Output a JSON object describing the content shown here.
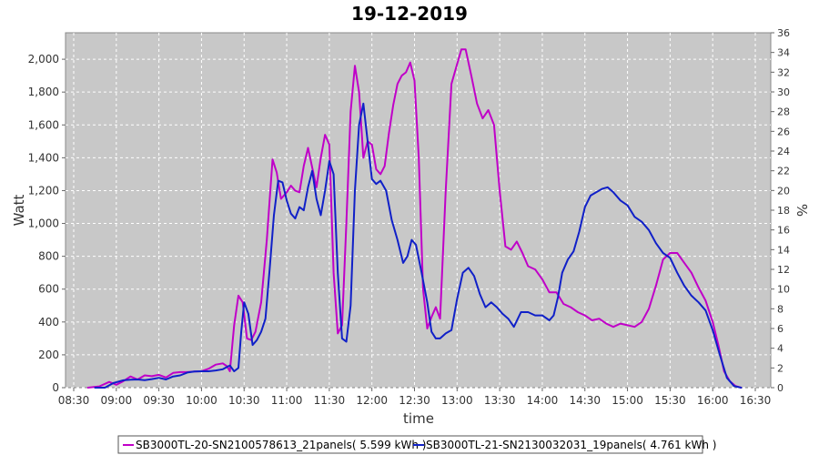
{
  "chart_data": {
    "type": "line",
    "title": "19-12-2019",
    "xlabel": "time",
    "ylabel": "Watt",
    "y2label": "%",
    "xlim": [
      "08:30",
      "16:30"
    ],
    "ylim": [
      0,
      2200
    ],
    "y2lim": [
      0,
      36
    ],
    "x_ticks": [
      "08:30",
      "09:00",
      "09:30",
      "10:00",
      "10:30",
      "11:00",
      "11:30",
      "12:00",
      "12:30",
      "13:00",
      "13:30",
      "14:00",
      "14:30",
      "15:00",
      "15:30",
      "16:00",
      "16:30"
    ],
    "y_ticks": [
      "0",
      "200",
      "400",
      "600",
      "800",
      "1,000",
      "1,200",
      "1,400",
      "1,600",
      "1,800",
      "2,000"
    ],
    "y_tick_values": [
      0,
      200,
      400,
      600,
      800,
      1000,
      1200,
      1400,
      1600,
      1800,
      2000
    ],
    "y2_ticks": [
      0,
      2,
      4,
      6,
      8,
      10,
      12,
      14,
      16,
      18,
      20,
      22,
      24,
      26,
      28,
      30,
      32,
      34,
      36
    ],
    "grid": true,
    "legend_position": "bottom",
    "background": "#c8c8c8",
    "series": [
      {
        "name": "SB3000TL-20-SN2100578613_21panels( 5.599 kWh )",
        "color": "#c000c8",
        "points": [
          [
            "08:40",
            0
          ],
          [
            "08:48",
            8
          ],
          [
            "08:55",
            35
          ],
          [
            "09:00",
            18
          ],
          [
            "09:05",
            40
          ],
          [
            "09:10",
            68
          ],
          [
            "09:15",
            50
          ],
          [
            "09:20",
            75
          ],
          [
            "09:25",
            70
          ],
          [
            "09:30",
            78
          ],
          [
            "09:35",
            62
          ],
          [
            "09:40",
            90
          ],
          [
            "09:45",
            95
          ],
          [
            "09:50",
            95
          ],
          [
            "09:55",
            98
          ],
          [
            "10:00",
            100
          ],
          [
            "10:05",
            115
          ],
          [
            "10:10",
            140
          ],
          [
            "10:15",
            148
          ],
          [
            "10:18",
            130
          ],
          [
            "10:20",
            100
          ],
          [
            "10:23",
            380
          ],
          [
            "10:26",
            560
          ],
          [
            "10:29",
            520
          ],
          [
            "10:32",
            300
          ],
          [
            "10:35",
            290
          ],
          [
            "10:38",
            340
          ],
          [
            "10:42",
            520
          ],
          [
            "10:46",
            900
          ],
          [
            "10:50",
            1390
          ],
          [
            "10:53",
            1310
          ],
          [
            "10:56",
            1150
          ],
          [
            "11:00",
            1190
          ],
          [
            "11:03",
            1230
          ],
          [
            "11:06",
            1200
          ],
          [
            "11:09",
            1190
          ],
          [
            "11:12",
            1350
          ],
          [
            "11:15",
            1460
          ],
          [
            "11:18",
            1340
          ],
          [
            "11:21",
            1220
          ],
          [
            "11:24",
            1400
          ],
          [
            "11:27",
            1540
          ],
          [
            "11:30",
            1480
          ],
          [
            "11:33",
            700
          ],
          [
            "11:36",
            330
          ],
          [
            "11:39",
            380
          ],
          [
            "11:42",
            1000
          ],
          [
            "11:45",
            1680
          ],
          [
            "11:48",
            1960
          ],
          [
            "11:51",
            1800
          ],
          [
            "11:54",
            1400
          ],
          [
            "11:57",
            1500
          ],
          [
            "12:00",
            1480
          ],
          [
            "12:03",
            1330
          ],
          [
            "12:06",
            1300
          ],
          [
            "12:09",
            1350
          ],
          [
            "12:12",
            1550
          ],
          [
            "12:15",
            1720
          ],
          [
            "12:18",
            1850
          ],
          [
            "12:21",
            1900
          ],
          [
            "12:24",
            1920
          ],
          [
            "12:27",
            1980
          ],
          [
            "12:30",
            1870
          ],
          [
            "12:33",
            1400
          ],
          [
            "12:36",
            600
          ],
          [
            "12:39",
            360
          ],
          [
            "12:42",
            430
          ],
          [
            "12:45",
            490
          ],
          [
            "12:48",
            420
          ],
          [
            "12:52",
            1200
          ],
          [
            "12:56",
            1850
          ],
          [
            "13:00",
            1970
          ],
          [
            "13:03",
            2060
          ],
          [
            "13:06",
            2060
          ],
          [
            "13:10",
            1900
          ],
          [
            "13:14",
            1730
          ],
          [
            "13:18",
            1640
          ],
          [
            "13:22",
            1690
          ],
          [
            "13:26",
            1600
          ],
          [
            "13:30",
            1200
          ],
          [
            "13:34",
            860
          ],
          [
            "13:38",
            840
          ],
          [
            "13:42",
            890
          ],
          [
            "13:46",
            820
          ],
          [
            "13:50",
            740
          ],
          [
            "13:55",
            720
          ],
          [
            "14:00",
            660
          ],
          [
            "14:05",
            580
          ],
          [
            "14:10",
            580
          ],
          [
            "14:15",
            510
          ],
          [
            "14:20",
            490
          ],
          [
            "14:25",
            460
          ],
          [
            "14:30",
            440
          ],
          [
            "14:35",
            410
          ],
          [
            "14:40",
            420
          ],
          [
            "14:45",
            390
          ],
          [
            "14:50",
            370
          ],
          [
            "14:55",
            390
          ],
          [
            "15:00",
            380
          ],
          [
            "15:05",
            370
          ],
          [
            "15:10",
            400
          ],
          [
            "15:15",
            480
          ],
          [
            "15:20",
            620
          ],
          [
            "15:25",
            780
          ],
          [
            "15:30",
            820
          ],
          [
            "15:35",
            820
          ],
          [
            "15:40",
            760
          ],
          [
            "15:45",
            700
          ],
          [
            "15:50",
            610
          ],
          [
            "15:55",
            530
          ],
          [
            "16:00",
            400
          ],
          [
            "16:04",
            260
          ],
          [
            "16:08",
            100
          ],
          [
            "16:12",
            40
          ],
          [
            "16:16",
            10
          ],
          [
            "16:20",
            0
          ]
        ]
      },
      {
        "name": "SB3000TL-21-SN2130032031_19panels( 4.761 kWh )",
        "color": "#1020c8",
        "points": [
          [
            "08:45",
            0
          ],
          [
            "08:52",
            0
          ],
          [
            "08:58",
            28
          ],
          [
            "09:05",
            45
          ],
          [
            "09:10",
            48
          ],
          [
            "09:15",
            50
          ],
          [
            "09:20",
            46
          ],
          [
            "09:25",
            52
          ],
          [
            "09:30",
            60
          ],
          [
            "09:35",
            50
          ],
          [
            "09:40",
            68
          ],
          [
            "09:45",
            75
          ],
          [
            "09:50",
            92
          ],
          [
            "09:55",
            98
          ],
          [
            "10:00",
            100
          ],
          [
            "10:05",
            100
          ],
          [
            "10:10",
            105
          ],
          [
            "10:15",
            112
          ],
          [
            "10:20",
            135
          ],
          [
            "10:23",
            100
          ],
          [
            "10:26",
            120
          ],
          [
            "10:28",
            340
          ],
          [
            "10:30",
            520
          ],
          [
            "10:33",
            450
          ],
          [
            "10:36",
            260
          ],
          [
            "10:39",
            290
          ],
          [
            "10:42",
            340
          ],
          [
            "10:45",
            420
          ],
          [
            "10:48",
            720
          ],
          [
            "10:51",
            1050
          ],
          [
            "10:54",
            1260
          ],
          [
            "10:57",
            1250
          ],
          [
            "11:00",
            1140
          ],
          [
            "11:03",
            1060
          ],
          [
            "11:06",
            1030
          ],
          [
            "11:09",
            1100
          ],
          [
            "11:12",
            1080
          ],
          [
            "11:15",
            1220
          ],
          [
            "11:18",
            1320
          ],
          [
            "11:21",
            1150
          ],
          [
            "11:24",
            1050
          ],
          [
            "11:27",
            1200
          ],
          [
            "11:30",
            1380
          ],
          [
            "11:33",
            1300
          ],
          [
            "11:36",
            700
          ],
          [
            "11:39",
            300
          ],
          [
            "11:42",
            280
          ],
          [
            "11:45",
            500
          ],
          [
            "11:48",
            1200
          ],
          [
            "11:51",
            1600
          ],
          [
            "11:54",
            1730
          ],
          [
            "11:57",
            1500
          ],
          [
            "12:00",
            1270
          ],
          [
            "12:03",
            1240
          ],
          [
            "12:06",
            1260
          ],
          [
            "12:10",
            1200
          ],
          [
            "12:14",
            1020
          ],
          [
            "12:18",
            900
          ],
          [
            "12:22",
            760
          ],
          [
            "12:25",
            800
          ],
          [
            "12:28",
            900
          ],
          [
            "12:31",
            870
          ],
          [
            "12:35",
            700
          ],
          [
            "12:39",
            520
          ],
          [
            "12:42",
            340
          ],
          [
            "12:45",
            300
          ],
          [
            "12:48",
            300
          ],
          [
            "12:52",
            330
          ],
          [
            "12:56",
            350
          ],
          [
            "13:00",
            540
          ],
          [
            "13:04",
            700
          ],
          [
            "13:08",
            730
          ],
          [
            "13:12",
            680
          ],
          [
            "13:16",
            570
          ],
          [
            "13:20",
            490
          ],
          [
            "13:24",
            520
          ],
          [
            "13:28",
            490
          ],
          [
            "13:32",
            450
          ],
          [
            "13:36",
            420
          ],
          [
            "13:40",
            370
          ],
          [
            "13:45",
            460
          ],
          [
            "13:50",
            460
          ],
          [
            "13:55",
            440
          ],
          [
            "14:00",
            440
          ],
          [
            "14:05",
            410
          ],
          [
            "14:08",
            440
          ],
          [
            "14:11",
            550
          ],
          [
            "14:14",
            700
          ],
          [
            "14:18",
            780
          ],
          [
            "14:22",
            830
          ],
          [
            "14:26",
            950
          ],
          [
            "14:30",
            1100
          ],
          [
            "14:34",
            1170
          ],
          [
            "14:38",
            1190
          ],
          [
            "14:42",
            1210
          ],
          [
            "14:46",
            1220
          ],
          [
            "14:50",
            1190
          ],
          [
            "14:55",
            1140
          ],
          [
            "15:00",
            1110
          ],
          [
            "15:05",
            1040
          ],
          [
            "15:10",
            1010
          ],
          [
            "15:15",
            960
          ],
          [
            "15:20",
            880
          ],
          [
            "15:25",
            820
          ],
          [
            "15:30",
            790
          ],
          [
            "15:35",
            700
          ],
          [
            "15:40",
            620
          ],
          [
            "15:45",
            560
          ],
          [
            "15:50",
            520
          ],
          [
            "15:55",
            470
          ],
          [
            "16:00",
            350
          ],
          [
            "16:05",
            200
          ],
          [
            "16:10",
            60
          ],
          [
            "16:15",
            10
          ],
          [
            "16:20",
            0
          ]
        ]
      }
    ]
  }
}
